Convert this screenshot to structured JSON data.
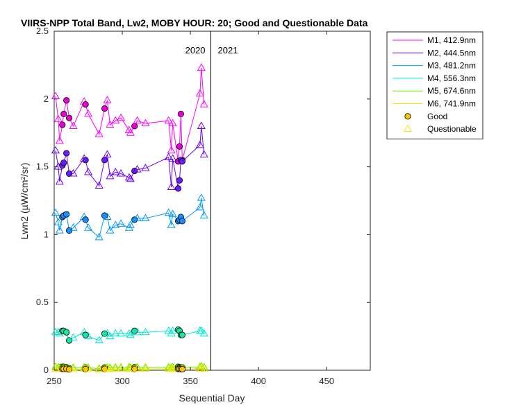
{
  "chart_data": {
    "type": "scatter",
    "title": "VIIRS-NPP Total Band, Lw2, MOBY HOUR: 20;  Good and Questionable Data",
    "xlabel": "Sequential Day",
    "ylabel": "Lwn2 (µW/cm²/sr)",
    "xlim": [
      250,
      482
    ],
    "ylim": [
      0,
      2.5
    ],
    "xticks": [
      250,
      300,
      350,
      400,
      450
    ],
    "yticks": [
      0,
      0.5,
      1,
      1.5,
      2,
      2.5
    ],
    "xtick_labels": [
      "250",
      "300",
      "350",
      "400",
      "450"
    ],
    "ytick_labels": [
      "0",
      "0.5",
      "1",
      "1.5",
      "2",
      "2.5"
    ],
    "year_divider_x": 365,
    "year_labels": [
      "2020",
      "2021"
    ],
    "legend_position": "outside-right",
    "good_marker": "filled circle",
    "questionable_marker": "open triangle",
    "x": [
      251,
      253,
      254,
      256,
      257,
      259,
      261,
      264,
      272,
      273,
      275,
      283,
      287,
      289,
      291,
      295,
      299,
      305,
      306,
      309,
      311,
      317,
      334,
      336,
      337,
      341,
      342,
      343,
      344,
      357,
      358,
      360
    ],
    "quality": [
      "Q",
      "Q",
      "Q",
      "G",
      "G",
      "G",
      "G",
      "Q",
      "Q",
      "G",
      "Q",
      "Q",
      "G",
      "Q",
      "Q",
      "Q",
      "Q",
      "Q",
      "Q",
      "G",
      "Q",
      "Q",
      "Q",
      "Q",
      "Q",
      "G",
      "G",
      "G",
      "G",
      "Q",
      "Q",
      "Q"
    ],
    "series": [
      {
        "name": "M1, 412.9nm",
        "color": "#ff00ff",
        "fill": "#e600d6",
        "values": [
          2.02,
          1.85,
          1.69,
          1.81,
          1.89,
          1.99,
          1.86,
          1.8,
          1.98,
          1.96,
          1.89,
          1.74,
          1.93,
          1.99,
          1.81,
          1.84,
          1.86,
          1.77,
          1.75,
          1.8,
          1.84,
          1.82,
          1.84,
          1.62,
          1.82,
          1.54,
          1.65,
          1.89,
          1.55,
          2.04,
          2.23,
          1.96
        ]
      },
      {
        "name": "M2, 444.5nm",
        "color": "#6a00ff",
        "fill": "#6a1aff",
        "values": [
          1.62,
          1.5,
          1.39,
          1.51,
          1.53,
          1.6,
          1.45,
          1.45,
          1.56,
          1.55,
          1.46,
          1.36,
          1.55,
          1.59,
          1.43,
          1.46,
          1.45,
          1.42,
          1.41,
          1.47,
          1.48,
          1.49,
          1.57,
          1.35,
          1.56,
          1.34,
          1.4,
          1.55,
          1.54,
          1.66,
          1.8,
          1.59
        ]
      },
      {
        "name": "M3, 481.2nm",
        "color": "#0099ff",
        "fill": "#1a8cff",
        "values": [
          1.16,
          1.09,
          1.03,
          1.13,
          1.14,
          1.15,
          1.03,
          1.05,
          1.13,
          1.11,
          1.05,
          0.98,
          1.14,
          1.13,
          1.03,
          1.07,
          1.08,
          1.05,
          1.07,
          1.11,
          1.12,
          1.12,
          1.16,
          1.07,
          1.15,
          1.1,
          1.11,
          1.13,
          1.1,
          1.2,
          1.27,
          1.14
        ]
      },
      {
        "name": "M4, 556.3nm",
        "color": "#00e5cc",
        "fill": "#1ae6a0",
        "values": [
          0.28,
          0.28,
          0.27,
          0.29,
          0.29,
          0.28,
          0.22,
          0.24,
          0.28,
          0.26,
          0.25,
          0.22,
          0.27,
          0.27,
          0.25,
          0.27,
          0.27,
          0.27,
          0.26,
          0.29,
          0.28,
          0.28,
          0.29,
          0.27,
          0.29,
          0.3,
          0.29,
          0.26,
          0.26,
          0.29,
          0.29,
          0.27
        ]
      },
      {
        "name": "M5, 674.6nm",
        "color": "#66ee00",
        "fill": "#7fe600",
        "values": [
          0.025,
          0.02,
          0.02,
          0.025,
          0.025,
          0.022,
          0.015,
          0.018,
          0.02,
          0.02,
          0.018,
          0.012,
          0.02,
          0.02,
          0.018,
          0.02,
          0.02,
          0.02,
          0.018,
          0.022,
          0.022,
          0.02,
          0.022,
          0.018,
          0.022,
          0.025,
          0.022,
          0.02,
          0.02,
          0.025,
          0.028,
          0.022
        ]
      },
      {
        "name": "M6, 741.9nm",
        "color": "#ffe000",
        "fill": "#ffc400",
        "values": [
          0.01,
          0.01,
          0.008,
          0.01,
          0.01,
          0.01,
          0.006,
          0.008,
          0.01,
          0.008,
          0.008,
          0.005,
          0.01,
          0.01,
          0.008,
          0.01,
          0.01,
          0.01,
          0.008,
          0.01,
          0.01,
          0.01,
          0.01,
          0.008,
          0.01,
          0.01,
          0.01,
          0.008,
          0.008,
          0.012,
          0.012,
          0.01
        ]
      }
    ],
    "legend_extra": [
      {
        "name": "Good",
        "color": "#000000",
        "fill": "#ffc400"
      },
      {
        "name": "Questionable",
        "color": "#ffe000"
      }
    ]
  }
}
